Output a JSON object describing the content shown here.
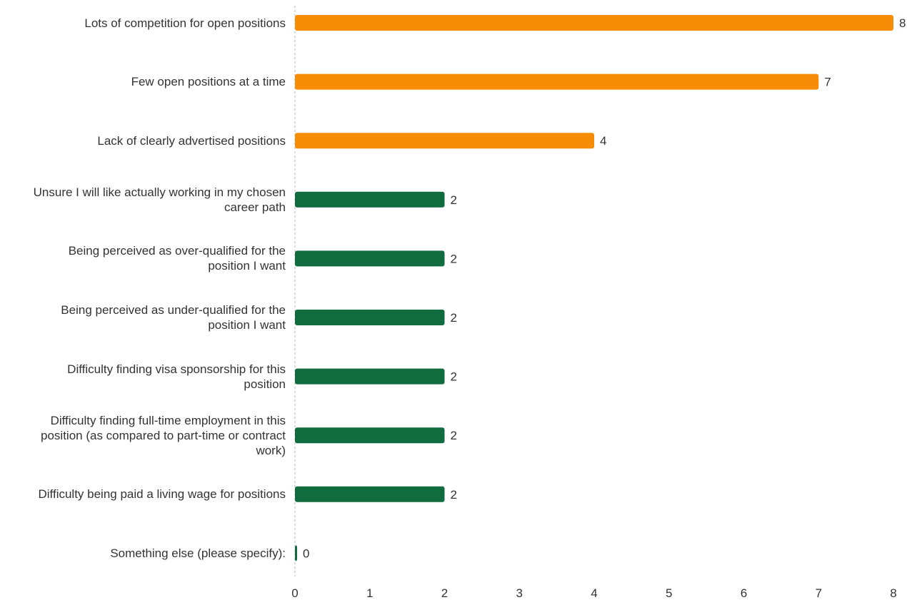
{
  "chart_data": {
    "type": "bar",
    "orientation": "horizontal",
    "title": "",
    "xlabel": "",
    "ylabel": "",
    "xlim": [
      0,
      8
    ],
    "grid": false,
    "legend": "none",
    "ticks": [
      "0",
      "1",
      "2",
      "3",
      "4",
      "5",
      "6",
      "7",
      "8"
    ],
    "categories": [
      [
        "Lots of competition for open positions"
      ],
      [
        "Few open positions at a time"
      ],
      [
        "Lack of clearly advertised positions"
      ],
      [
        "Unsure I will like actually working in my chosen",
        "career path"
      ],
      [
        "Being perceived as over-qualified for the",
        "position I want"
      ],
      [
        "Being perceived as under-qualified for the",
        "position I want"
      ],
      [
        "Difficulty finding visa sponsorship for this",
        "position"
      ],
      [
        "Difficulty finding full-time employment in this",
        "position (as compared to part-time or contract",
        "work)"
      ],
      [
        "Difficulty being paid a living wage for positions"
      ],
      [
        "Something else (please specify):"
      ]
    ],
    "values": [
      8,
      7,
      4,
      2,
      2,
      2,
      2,
      2,
      2,
      0
    ],
    "colors": [
      "#f78c06",
      "#f78c06",
      "#f78c06",
      "#106b3e",
      "#106b3e",
      "#106b3e",
      "#106b3e",
      "#106b3e",
      "#106b3e",
      "#106b3e"
    ]
  }
}
